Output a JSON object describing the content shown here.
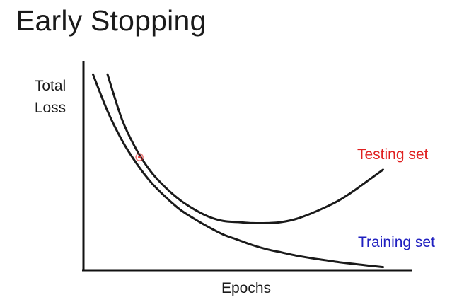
{
  "slide": {
    "title": "Early Stopping"
  },
  "chart_data": {
    "type": "line",
    "title": "Early Stopping",
    "xlabel": "Epochs",
    "ylabel_lines": [
      "Total",
      "Loss"
    ],
    "grid": false,
    "xlim": [
      0,
      10
    ],
    "ylim": [
      0,
      10
    ],
    "series": [
      {
        "name": "Testing set",
        "color": "#e02020",
        "x": [
          0.0,
          0.5,
          1.0,
          1.5,
          2.0,
          2.5,
          3.0,
          3.5,
          4.0,
          4.5,
          5.0,
          5.5,
          6.0,
          6.5,
          7.0,
          7.5,
          8.0,
          8.5,
          9.0,
          9.5
        ],
        "y": [
          9.35,
          7.2,
          5.75,
          4.7,
          3.95,
          3.35,
          2.9,
          2.55,
          2.35,
          2.3,
          2.25,
          2.25,
          2.3,
          2.45,
          2.7,
          3.0,
          3.35,
          3.8,
          4.3,
          4.8
        ]
      },
      {
        "name": "Training set",
        "color": "#2020c0",
        "x": [
          -0.5,
          0.0,
          0.5,
          1.0,
          1.5,
          2.0,
          2.5,
          3.0,
          3.5,
          4.0,
          4.5,
          5.0,
          5.5,
          6.0,
          6.5,
          7.0,
          7.5,
          8.0,
          8.5,
          9.0,
          9.5
        ],
        "y": [
          9.35,
          7.6,
          6.2,
          5.1,
          4.2,
          3.5,
          2.9,
          2.45,
          2.05,
          1.7,
          1.45,
          1.2,
          1.0,
          0.85,
          0.7,
          0.58,
          0.48,
          0.38,
          0.3,
          0.22,
          0.15
        ]
      }
    ],
    "cursor_marker": {
      "x": 1.1,
      "y": 5.4,
      "color": "#e03030"
    }
  }
}
